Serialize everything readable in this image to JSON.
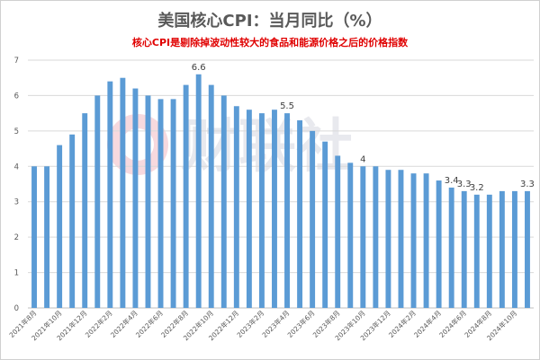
{
  "chart_data": {
    "type": "bar",
    "title": "美国核心CPI：当月同比（%）",
    "subtitle": "核心CPI是剔除掉波动性较大的食品和能源价格之后的价格指数",
    "categories": [
      "2021年8月",
      "2021年9月",
      "2021年10月",
      "2021年11月",
      "2021年12月",
      "2022年1月",
      "2022年2月",
      "2022年3月",
      "2022年4月",
      "2022年5月",
      "2022年6月",
      "2022年7月",
      "2022年8月",
      "2022年9月",
      "2022年10月",
      "2022年11月",
      "2022年12月",
      "2023年1月",
      "2023年2月",
      "2023年3月",
      "2023年4月",
      "2023年5月",
      "2023年6月",
      "2023年7月",
      "2023年8月",
      "2023年9月",
      "2023年10月",
      "2023年11月",
      "2023年12月",
      "2024年1月",
      "2024年2月",
      "2024年3月",
      "2024年4月",
      "2024年5月",
      "2024年6月",
      "2024年7月",
      "2024年8月",
      "2024年9月",
      "2024年10月",
      "2024年11月"
    ],
    "x_tick_labels": [
      "2021年8月",
      "2021年10月",
      "2021年12月",
      "2022年2月",
      "2022年4月",
      "2022年6月",
      "2022年8月",
      "2022年10月",
      "2022年12月",
      "2023年2月",
      "2023年4月",
      "2023年6月",
      "2023年8月",
      "2023年10月",
      "2023年12月",
      "2024年2月",
      "2024年4月",
      "2024年6月",
      "2024年8月",
      "2024年10月"
    ],
    "values": [
      4.0,
      4.0,
      4.6,
      4.9,
      5.5,
      6.0,
      6.4,
      6.5,
      6.2,
      6.0,
      5.9,
      5.9,
      6.3,
      6.6,
      6.3,
      6.0,
      5.7,
      5.6,
      5.5,
      5.6,
      5.5,
      5.3,
      5.0,
      4.7,
      4.3,
      4.1,
      4.0,
      4.0,
      3.9,
      3.9,
      3.8,
      3.8,
      3.6,
      3.4,
      3.3,
      3.2,
      3.2,
      3.3,
      3.3,
      3.3
    ],
    "data_labels": [
      {
        "index": 13,
        "text": "6.6"
      },
      {
        "index": 20,
        "text": "5.5"
      },
      {
        "index": 26,
        "text": "4"
      },
      {
        "index": 33,
        "text": "3.4"
      },
      {
        "index": 34,
        "text": "3.3"
      },
      {
        "index": 35,
        "text": "3.2"
      },
      {
        "index": 39,
        "text": "3.3"
      }
    ],
    "y_ticks": [
      0,
      1,
      2,
      3,
      4,
      5,
      6,
      7
    ],
    "ylim": [
      0,
      7
    ],
    "grid": true,
    "bar_color": "#5b9bd5",
    "xlabel": "",
    "ylabel": ""
  },
  "watermark": {
    "text": "财联社",
    "color": "#e8e9ee",
    "accent": "#f7d9de"
  }
}
